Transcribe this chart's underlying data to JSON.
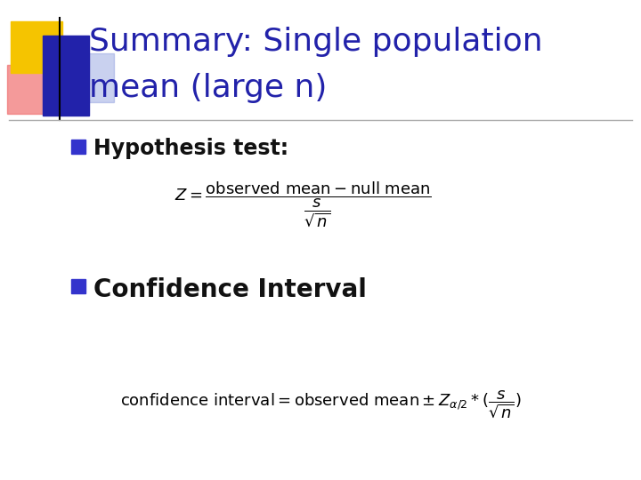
{
  "title_line1": "Summary: Single population",
  "title_line2": "mean (large n)",
  "title_color": "#2222aa",
  "bullet1_text": "Hypothesis test:",
  "bullet2_text": "Confidence Interval",
  "bullet_color": "#111111",
  "bullet_square_color": "#3333cc",
  "bg_color": "#ffffff",
  "accent_yellow": "#f5c400",
  "accent_red": "#f07070",
  "accent_blue_dark": "#2222aa",
  "accent_blue_light": "#8899dd",
  "divider_color": "#aaaaaa"
}
